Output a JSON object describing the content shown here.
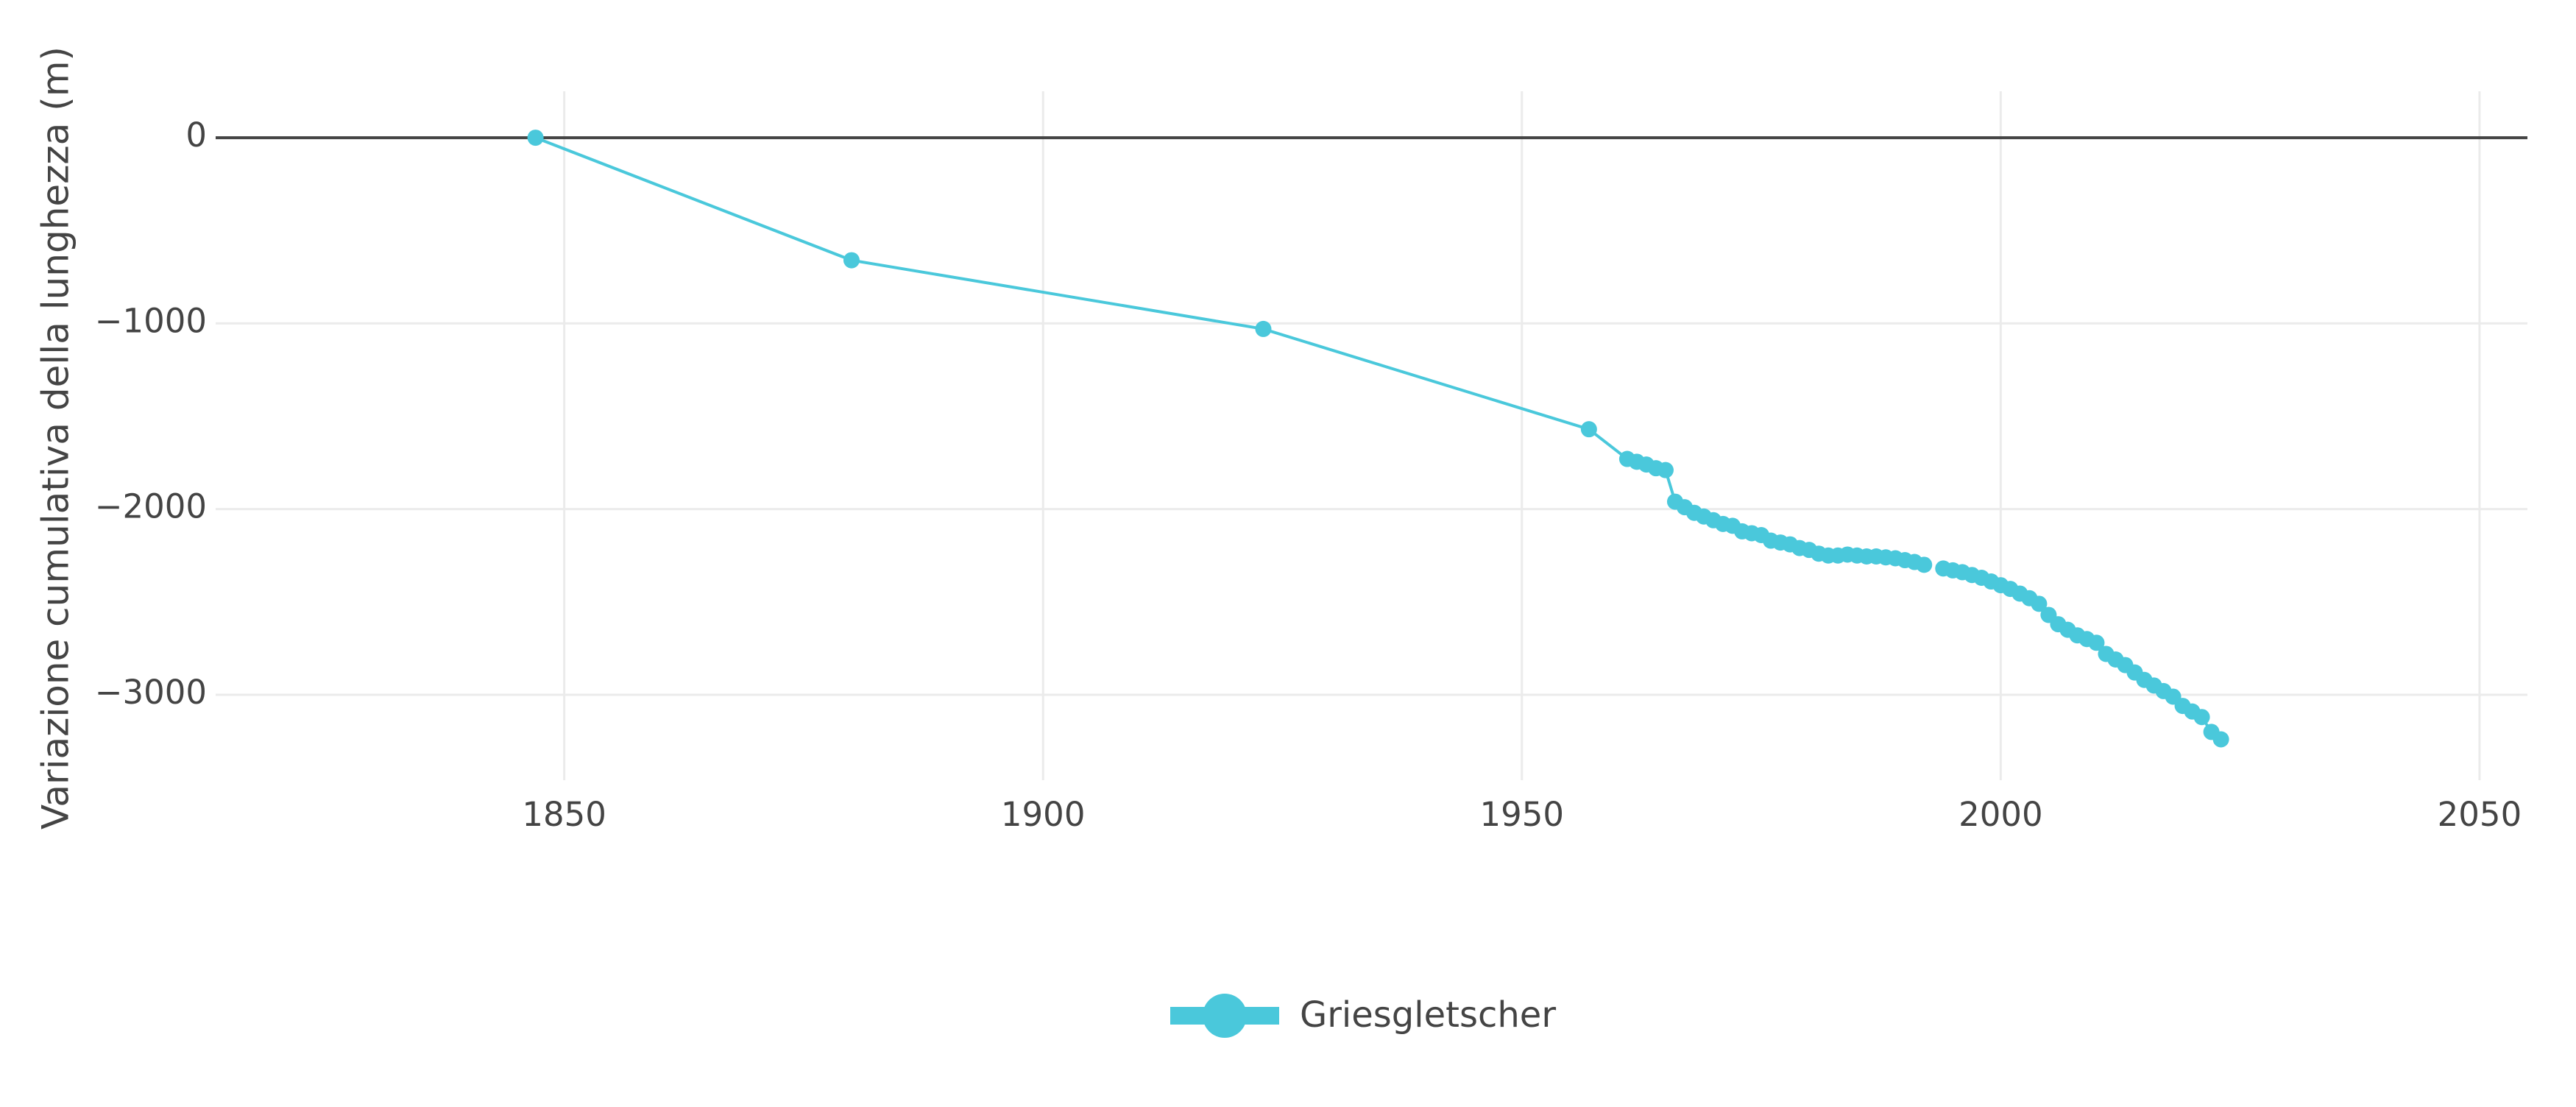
{
  "chart_data": {
    "type": "line",
    "y_label": "Variazione cumulativa della lunghezza (m)",
    "x": [
      1847,
      1880,
      1923,
      1957,
      1961,
      1962,
      1963,
      1964,
      1965,
      1966,
      1967,
      1968,
      1969,
      1970,
      1971,
      1972,
      1973,
      1974,
      1975,
      1976,
      1977,
      1978,
      1979,
      1980,
      1981,
      1982,
      1983,
      1984,
      1985,
      1986,
      1987,
      1988,
      1989,
      1990,
      1991,
      1992,
      1993,
      1994,
      1995,
      1996,
      1997,
      1998,
      1999,
      2000,
      2001,
      2002,
      2003,
      2004,
      2005,
      2006,
      2007,
      2008,
      2009,
      2010,
      2011,
      2012,
      2013,
      2014,
      2015,
      2016,
      2017,
      2018,
      2019,
      2020,
      2021,
      2022,
      2023
    ],
    "series": [
      {
        "name": "Griesgletscher",
        "color": "#4ac8db",
        "values": [
          0,
          -660,
          -1030,
          -1570,
          -1730,
          -1745,
          -1760,
          -1780,
          -1790,
          -1960,
          -1990,
          -2020,
          -2040,
          -2060,
          -2080,
          -2090,
          -2120,
          -2130,
          -2140,
          -2170,
          -2180,
          -2190,
          -2210,
          -2220,
          -2240,
          -2250,
          -2250,
          -2245,
          -2250,
          -2255,
          -2255,
          -2260,
          -2265,
          -2275,
          -2285,
          -2300,
          null,
          -2320,
          -2330,
          -2340,
          -2355,
          -2370,
          -2390,
          -2410,
          -2430,
          -2455,
          -2480,
          -2510,
          -2570,
          -2620,
          -2650,
          -2680,
          -2700,
          -2720,
          -2780,
          -2810,
          -2840,
          -2880,
          -2920,
          -2950,
          -2980,
          -3010,
          -3060,
          -3090,
          -3120,
          -3200,
          -3240
        ]
      }
    ],
    "xlim": [
      1813.6,
      2055
    ],
    "xticks": [
      1850,
      1900,
      1950,
      2000,
      2050
    ],
    "ylim": [
      -3460,
      250
    ],
    "yticks": [
      0,
      {
        "value": -1000,
        "label": "−1000"
      },
      {
        "value": -2000,
        "label": "−2000"
      },
      {
        "value": -3000,
        "label": "−3000"
      }
    ],
    "grid": true
  }
}
